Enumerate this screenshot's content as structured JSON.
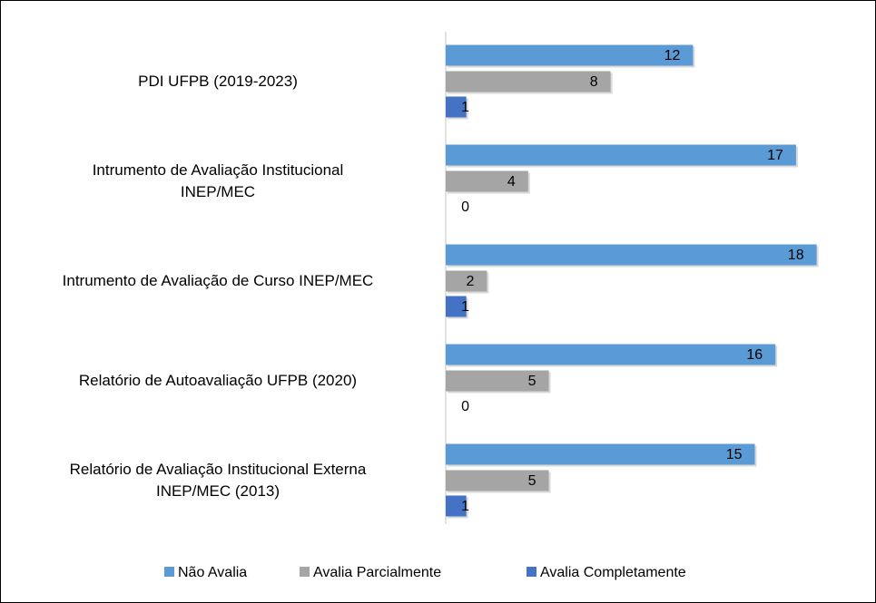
{
  "chart_data": {
    "type": "hbar",
    "categories": [
      "PDI UFPB (2019-2023)",
      "Intrumento de Avaliação Institucional\nINEP/MEC",
      "Intrumento de Avaliação de Curso INEP/MEC",
      "Relatório de Autoavaliação UFPB (2020)",
      "Relatório de Avaliação Institucional Externa\nINEP/MEC (2013)"
    ],
    "series": [
      {
        "name": "Não Avalia",
        "color": "#5b9bd5",
        "values": [
          12,
          17,
          18,
          16,
          15
        ]
      },
      {
        "name": "Avalia Parcialmente",
        "color": "#a5a5a5",
        "values": [
          8,
          4,
          2,
          5,
          5
        ]
      },
      {
        "name": "Avalia Completamente",
        "color": "#4472c4",
        "values": [
          1,
          0,
          1,
          0,
          1
        ]
      }
    ],
    "xlim": [
      0,
      20
    ],
    "legend": "bottom"
  }
}
